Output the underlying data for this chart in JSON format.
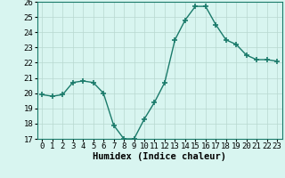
{
  "x": [
    0,
    1,
    2,
    3,
    4,
    5,
    6,
    7,
    8,
    9,
    10,
    11,
    12,
    13,
    14,
    15,
    16,
    17,
    18,
    19,
    20,
    21,
    22,
    23
  ],
  "y": [
    19.9,
    19.8,
    19.9,
    20.7,
    20.8,
    20.7,
    20.0,
    17.9,
    17.0,
    17.0,
    18.3,
    19.4,
    20.7,
    23.5,
    24.8,
    25.7,
    25.7,
    24.5,
    23.5,
    23.2,
    22.5,
    22.2,
    22.2,
    22.1
  ],
  "line_color": "#1a7a6a",
  "marker": "+",
  "markersize": 4,
  "markeredgewidth": 1.2,
  "bg_color": "#d8f5f0",
  "grid_color": "#b8d8d0",
  "xlabel": "Humidex (Indice chaleur)",
  "ylim": [
    17,
    26
  ],
  "xlim": [
    -0.5,
    23.5
  ],
  "yticks": [
    17,
    18,
    19,
    20,
    21,
    22,
    23,
    24,
    25,
    26
  ],
  "xticks": [
    0,
    1,
    2,
    3,
    4,
    5,
    6,
    7,
    8,
    9,
    10,
    11,
    12,
    13,
    14,
    15,
    16,
    17,
    18,
    19,
    20,
    21,
    22,
    23
  ],
  "xlabel_fontsize": 7.5,
  "tick_fontsize": 6.5,
  "linewidth": 1.0
}
